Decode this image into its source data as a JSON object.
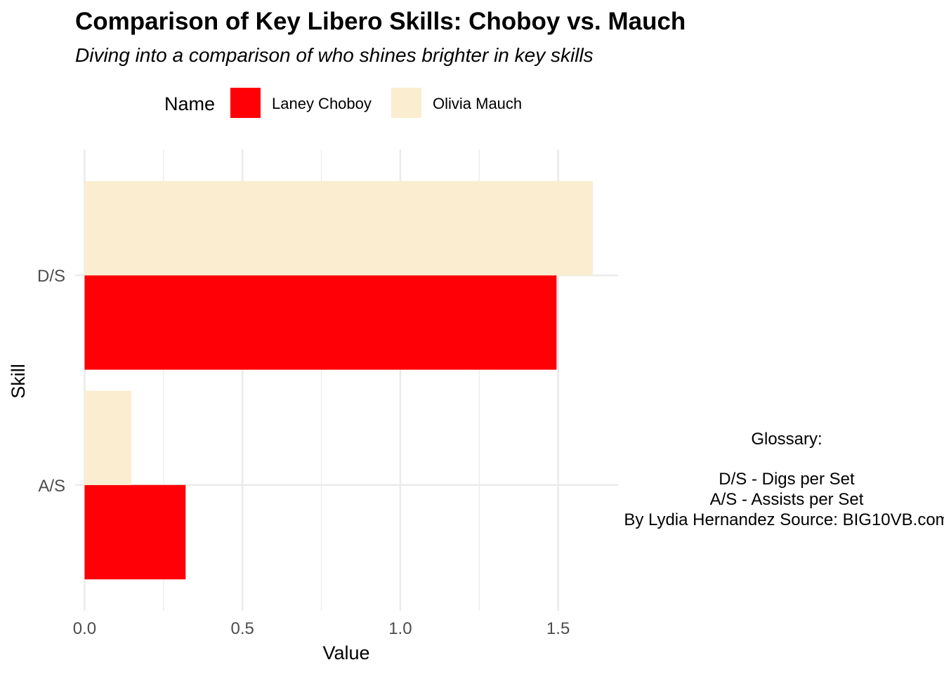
{
  "chart_data": {
    "type": "bar",
    "orientation": "horizontal",
    "title": "Comparison of Key Libero Skills: Choboy vs. Mauch",
    "subtitle": "Diving into a comparison of who shines brighter in key skills",
    "xlabel": "Value",
    "ylabel": "Skill",
    "categories": [
      "D/S",
      "A/S"
    ],
    "series": [
      {
        "name": "Laney Choboy",
        "color": "#ff0007",
        "values": [
          1.495,
          0.32
        ]
      },
      {
        "name": "Olivia Mauch",
        "color": "#fbeed0",
        "values": [
          1.61,
          0.148
        ]
      }
    ],
    "xlim": [
      -0.03,
      1.69
    ],
    "x_ticks": [
      0.0,
      0.5,
      1.0,
      1.5
    ],
    "x_tick_labels": [
      "0.0",
      "0.5",
      "1.0",
      "1.5"
    ],
    "grid": true,
    "legend": {
      "title": "Name",
      "position": "top"
    },
    "annotation": {
      "lines": [
        "Glossary:",
        "",
        "D/S - Digs per Set",
        "A/S - Assists per Set",
        "By Lydia Hernandez Source: BIG10VB.com"
      ]
    }
  }
}
